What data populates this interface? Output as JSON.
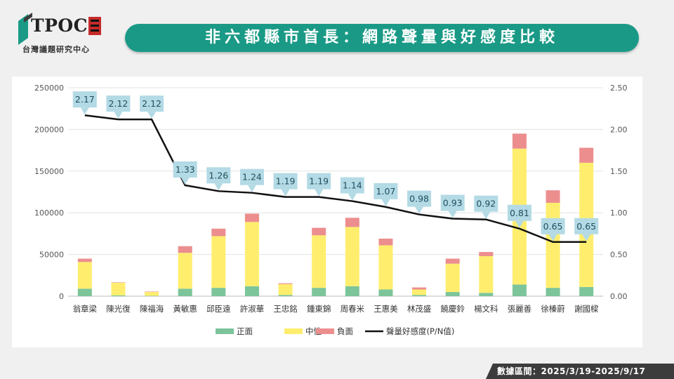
{
  "header": {
    "logo_text": "TPOC",
    "logo_subtitle": "台灣議題研究中心",
    "title": "非六都縣市首長：網路聲量與好感度比較"
  },
  "footer": {
    "date_range": "數據區間：2025/3/19-2025/9/17"
  },
  "colors": {
    "positive": "#7cc49a",
    "neutral": "#ffee6e",
    "negative": "#ec8e8e",
    "line": "#111111",
    "label_bg": "#b3dae5"
  },
  "chart_data": {
    "type": "bar",
    "stacked": true,
    "categories": [
      "翁章梁",
      "陳光復",
      "陳福海",
      "黃敏惠",
      "邱臣遠",
      "許淑華",
      "王忠銘",
      "鍾東錦",
      "周春米",
      "王惠美",
      "林茂盛",
      "饒慶鈴",
      "楊文科",
      "張麗善",
      "徐榛蔚",
      "謝國樑"
    ],
    "series": [
      {
        "name": "正面",
        "values": [
          9000,
          1000,
          500,
          9000,
          10000,
          12000,
          1500,
          10000,
          12000,
          8000,
          1500,
          5000,
          4000,
          14000,
          10000,
          11000
        ]
      },
      {
        "name": "中性",
        "values": [
          32000,
          15000,
          4500,
          43000,
          62000,
          77000,
          13000,
          63000,
          71000,
          53000,
          6500,
          34000,
          44000,
          163000,
          102000,
          149000
        ]
      },
      {
        "name": "負面",
        "values": [
          4000,
          500,
          500,
          8000,
          9000,
          10000,
          1000,
          9000,
          11000,
          8000,
          2500,
          6000,
          5000,
          18000,
          15000,
          18000
        ]
      }
    ],
    "line": {
      "name": "聲量好感度(P/N值)",
      "axis": "right",
      "values": [
        2.17,
        2.12,
        2.12,
        1.33,
        1.26,
        1.24,
        1.19,
        1.19,
        1.14,
        1.07,
        0.98,
        0.93,
        0.92,
        0.81,
        0.65,
        0.65
      ],
      "labels": [
        "2.17",
        "2.12",
        "2.12",
        "1.33",
        "1.26",
        "1.24",
        "1.19",
        "1.19",
        "1.14",
        "1.07",
        "0.98",
        "0.93",
        "0.92",
        "0.81",
        "0.65",
        "0.65"
      ]
    },
    "ylim": [
      0,
      250000
    ],
    "yticks": [
      "0",
      "50000",
      "100000",
      "150000",
      "200000",
      "250000"
    ],
    "y2lim": [
      0,
      2.5
    ],
    "y2ticks": [
      "0.00",
      "0.50",
      "1.00",
      "1.50",
      "2.00",
      "2.50"
    ],
    "grid": true,
    "legend_position": "bottom"
  }
}
